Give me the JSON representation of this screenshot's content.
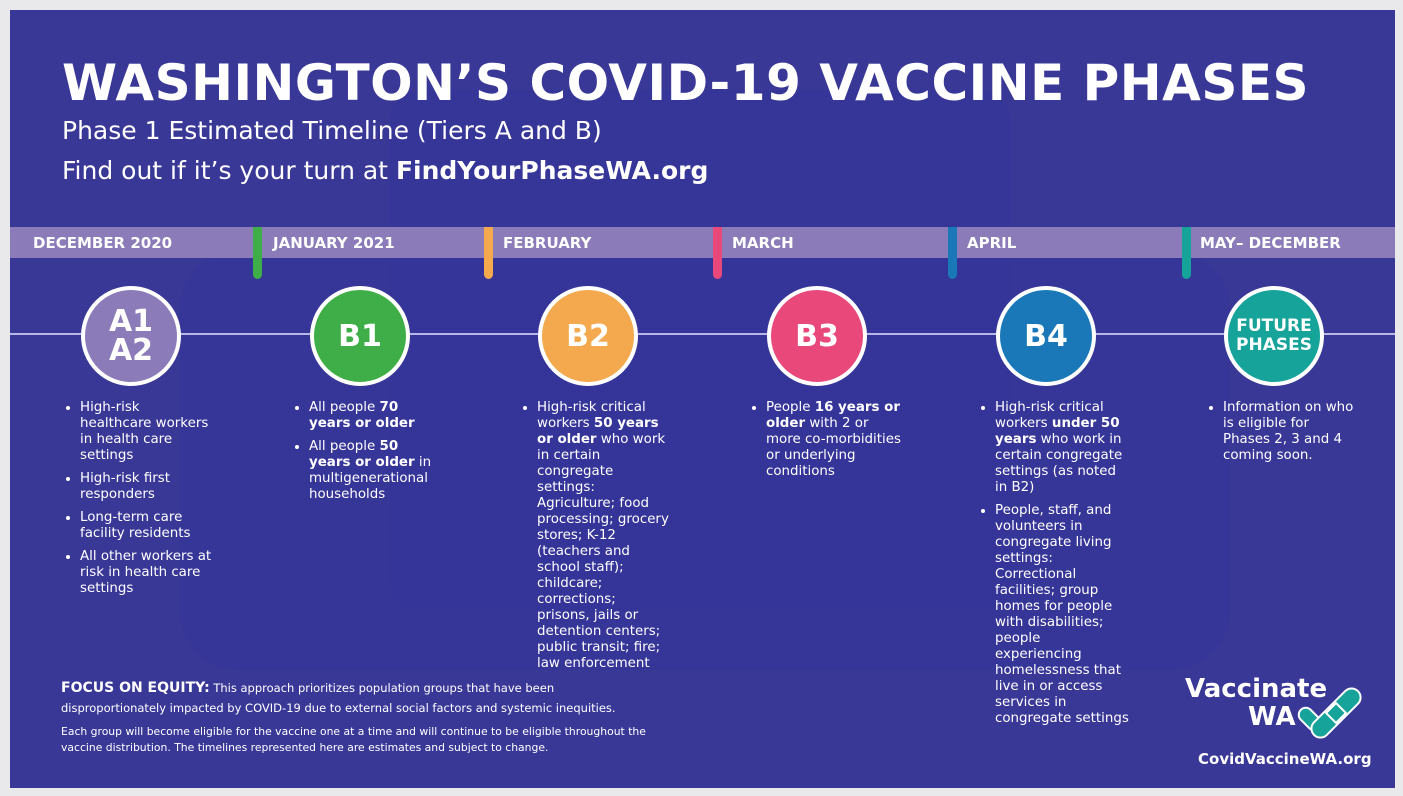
{
  "header": {
    "title": "WASHINGTON’S COVID-19 VACCINE PHASES",
    "subtitle": "Phase 1 Estimated Timeline (Tiers A and B)",
    "cta_prefix": "Find out if it’s your turn at ",
    "cta_link": "FindYourPhaseWA.org"
  },
  "phases": [
    {
      "month": "DECEMBER 2020",
      "label_lines": [
        "A1",
        "A2"
      ],
      "color": "#8b7cb9",
      "items": [
        [
          {
            "t": "High-risk healthcare workers in health care settings"
          }
        ],
        [
          {
            "t": "High-risk first responders"
          }
        ],
        [
          {
            "t": "Long-term care facility residents"
          }
        ],
        [
          {
            "t": "All other workers at risk in health care settings"
          }
        ]
      ]
    },
    {
      "month": "JANUARY 2021",
      "label_lines": [
        "B1"
      ],
      "color": "#3fae49",
      "items": [
        [
          {
            "t": "All people "
          },
          {
            "t": "70 years or older",
            "b": true
          }
        ],
        [
          {
            "t": "All people "
          },
          {
            "t": "50 years or older",
            "b": true
          },
          {
            "t": " in multigenerational households"
          }
        ]
      ]
    },
    {
      "month": "FEBRUARY",
      "label_lines": [
        "B2"
      ],
      "color": "#f5a94f",
      "items": [
        [
          {
            "t": "High-risk critical workers "
          },
          {
            "t": "50 years or older",
            "b": true
          },
          {
            "t": " who work in certain congregate settings: Agriculture; food processing; grocery stores; K-12 (teachers and school staff); childcare; corrections; prisons, jails or detention centers; public transit; fire; law enforcement"
          }
        ]
      ]
    },
    {
      "month": "MARCH",
      "label_lines": [
        "B3"
      ],
      "color": "#e9497a",
      "items": [
        [
          {
            "t": "People "
          },
          {
            "t": "16 years or older",
            "b": true
          },
          {
            "t": " with 2 or more co-morbidities or underlying conditions"
          }
        ]
      ]
    },
    {
      "month": "APRIL",
      "label_lines": [
        "B4"
      ],
      "color": "#1a78b9",
      "items": [
        [
          {
            "t": "High-risk critical workers "
          },
          {
            "t": "under 50 years",
            "b": true
          },
          {
            "t": " who work in certain congregate settings (as noted in B2)"
          }
        ],
        [
          {
            "t": "People, staff, and volunteers in congregate living settings: Correctional facilities; group homes for people with disabilities; people experiencing homelessness that live in or access services in congregate settings"
          }
        ]
      ]
    },
    {
      "month": "MAY– DECEMBER",
      "label_lines": [
        "FUTURE",
        "PHASES"
      ],
      "color": "#16a39a",
      "items": [
        [
          {
            "t": "Information on who is eligible for Phases 2, 3 and 4 coming soon."
          }
        ]
      ]
    }
  ],
  "footer": {
    "equity_label": "FOCUS ON EQUITY:",
    "equity_text": " This approach prioritizes population groups that have been disproportionately impacted by COVID-19 due to external social factors and systemic inequities.",
    "note": "Each group will become eligible for the vaccine one at a time and will continue to be eligible throughout the vaccine distribution. The timelines represented here are estimates and subject to change."
  },
  "logo": {
    "line1": "Vaccinate",
    "line2": "WA",
    "url": "CovidVaccineWA.org",
    "icon": "bandage-check-icon",
    "color": "#16a39a"
  }
}
